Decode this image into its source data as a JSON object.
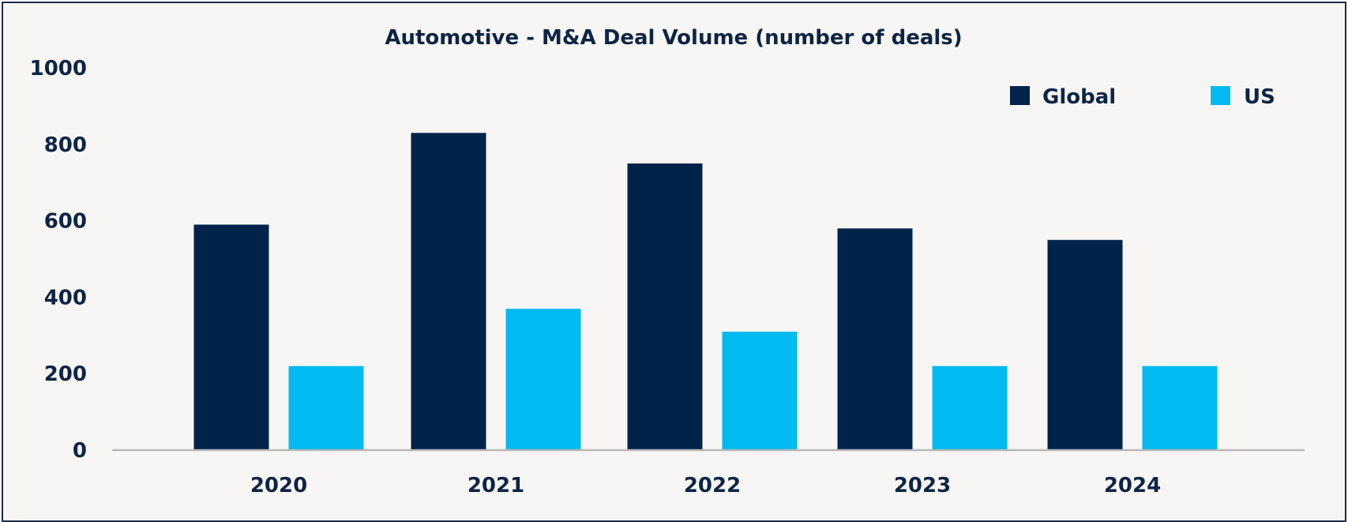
{
  "chart_data": {
    "type": "bar",
    "title": "Automotive - M&A Deal Volume (number of deals)",
    "xlabel": "",
    "ylabel": "",
    "categories": [
      "2020",
      "2021",
      "2022",
      "2023",
      "2024"
    ],
    "series": [
      {
        "name": "Global",
        "color": "#00234a",
        "values": [
          590,
          830,
          750,
          580,
          550
        ]
      },
      {
        "name": "US",
        "color": "#00bbef",
        "values": [
          220,
          370,
          310,
          220,
          220
        ]
      }
    ],
    "ylim": [
      0,
      1000
    ],
    "yticks": [
      "0",
      "200",
      "400",
      "600",
      "800",
      "1000"
    ],
    "grid": false,
    "legend": "top-right",
    "colors": {
      "text": "#0d2545",
      "axis": "#b8b8b8",
      "background": "#f8f6f4",
      "border": "#1c2b4a"
    }
  }
}
